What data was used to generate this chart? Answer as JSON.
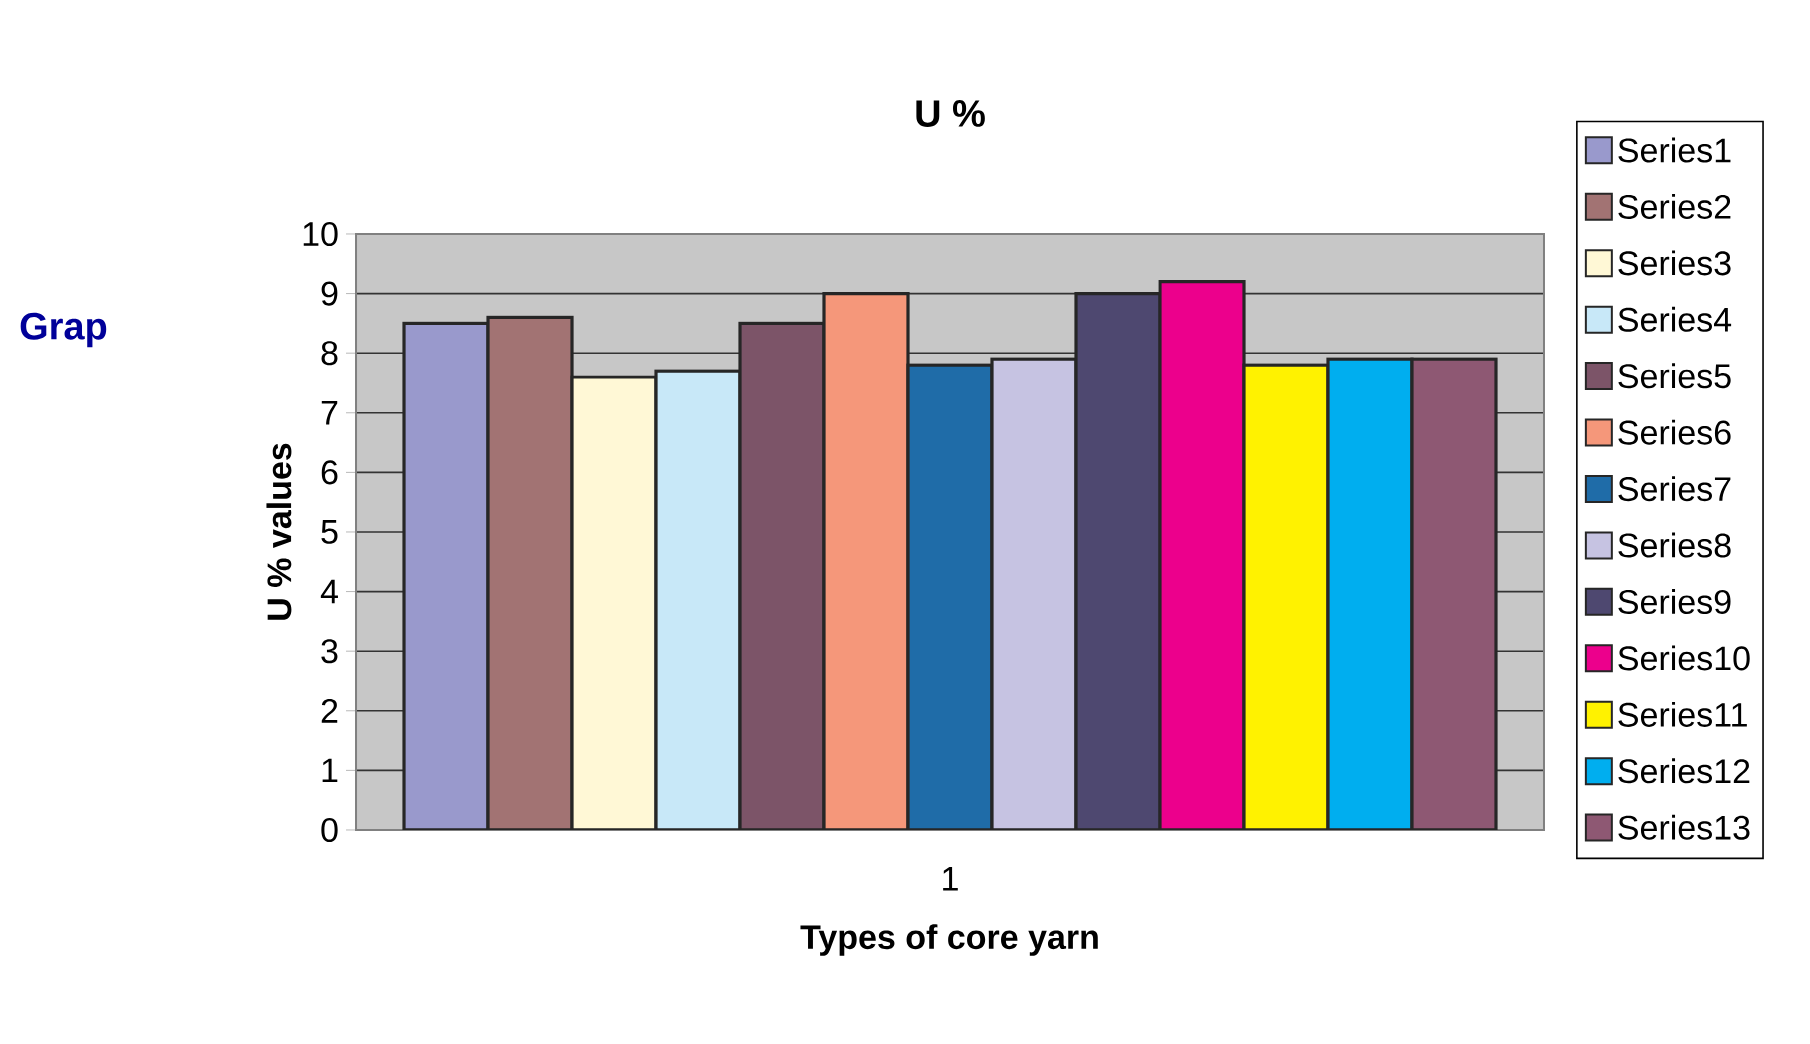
{
  "chart_data": {
    "type": "bar",
    "title": "U %",
    "xlabel": "Types of core yarn",
    "ylabel": "U % values",
    "categories": [
      "1"
    ],
    "series": [
      {
        "name": "Series1",
        "color": "#9999cc",
        "values": [
          8.5
        ]
      },
      {
        "name": "Series2",
        "color": "#a27373",
        "values": [
          8.6
        ]
      },
      {
        "name": "Series3",
        "color": "#fff8d6",
        "values": [
          7.6
        ]
      },
      {
        "name": "Series4",
        "color": "#c8e8f8",
        "values": [
          7.7
        ]
      },
      {
        "name": "Series5",
        "color": "#7c5468",
        "values": [
          8.5
        ]
      },
      {
        "name": "Series6",
        "color": "#f5977a",
        "values": [
          9.0
        ]
      },
      {
        "name": "Series7",
        "color": "#1f6ca8",
        "values": [
          7.8
        ]
      },
      {
        "name": "Series8",
        "color": "#c6c3e2",
        "values": [
          7.9
        ]
      },
      {
        "name": "Series9",
        "color": "#4e4870",
        "values": [
          9.0
        ]
      },
      {
        "name": "Series10",
        "color": "#ec008c",
        "values": [
          9.2
        ]
      },
      {
        "name": "Series11",
        "color": "#fff200",
        "values": [
          7.8
        ]
      },
      {
        "name": "Series12",
        "color": "#00aeef",
        "values": [
          7.9
        ]
      },
      {
        "name": "Series13",
        "color": "#8e5873",
        "values": [
          7.9
        ]
      }
    ],
    "ylim": [
      0,
      10
    ],
    "yticks": [
      0,
      1,
      2,
      3,
      4,
      5,
      6,
      7,
      8,
      9,
      10
    ],
    "grid": "y",
    "legend": "right",
    "annotations": [
      "Grap"
    ]
  }
}
